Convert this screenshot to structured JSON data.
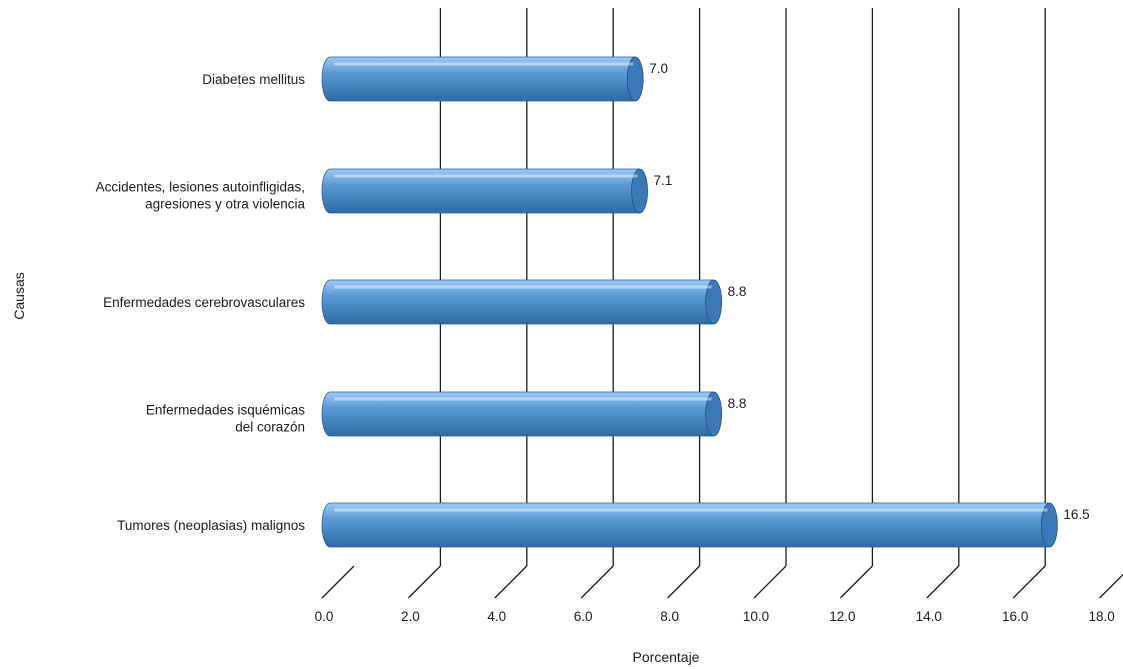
{
  "chart_data": {
    "type": "bar",
    "orientation": "horizontal",
    "style": "3d-cylinder",
    "categories": [
      [
        "Diabetes mellitus"
      ],
      [
        "Accidentes, lesiones autoinfligidas,",
        "agresiones y otra violencia"
      ],
      [
        "Enfermedades cerebrovasculares"
      ],
      [
        "Enfermedades isquémicas",
        "del corazón"
      ],
      [
        "Tumores (neoplasias) malignos"
      ]
    ],
    "values": [
      7.0,
      7.1,
      8.8,
      8.8,
      16.5
    ],
    "value_labels": [
      "7.0",
      "7.1",
      "8.8",
      "8.8",
      "16.5"
    ],
    "xlabel": "Porcentaje",
    "ylabel": "Causas",
    "xlim": [
      0,
      18
    ],
    "xticks": [
      0,
      2,
      4,
      6,
      8,
      10,
      12,
      14,
      16,
      18
    ],
    "xtick_labels": [
      "0.0",
      "2.0",
      "4.0",
      "6.0",
      "8.0",
      "10.0",
      "12.0",
      "14.0",
      "16.0",
      "18.0"
    ],
    "grid": "vertical",
    "legend": "none",
    "colors": {
      "bar": "#5b9bd5",
      "bar_light": "#9ecbf5",
      "bar_dark": "#2d6aa6",
      "grid": "#1a1a1a"
    }
  }
}
